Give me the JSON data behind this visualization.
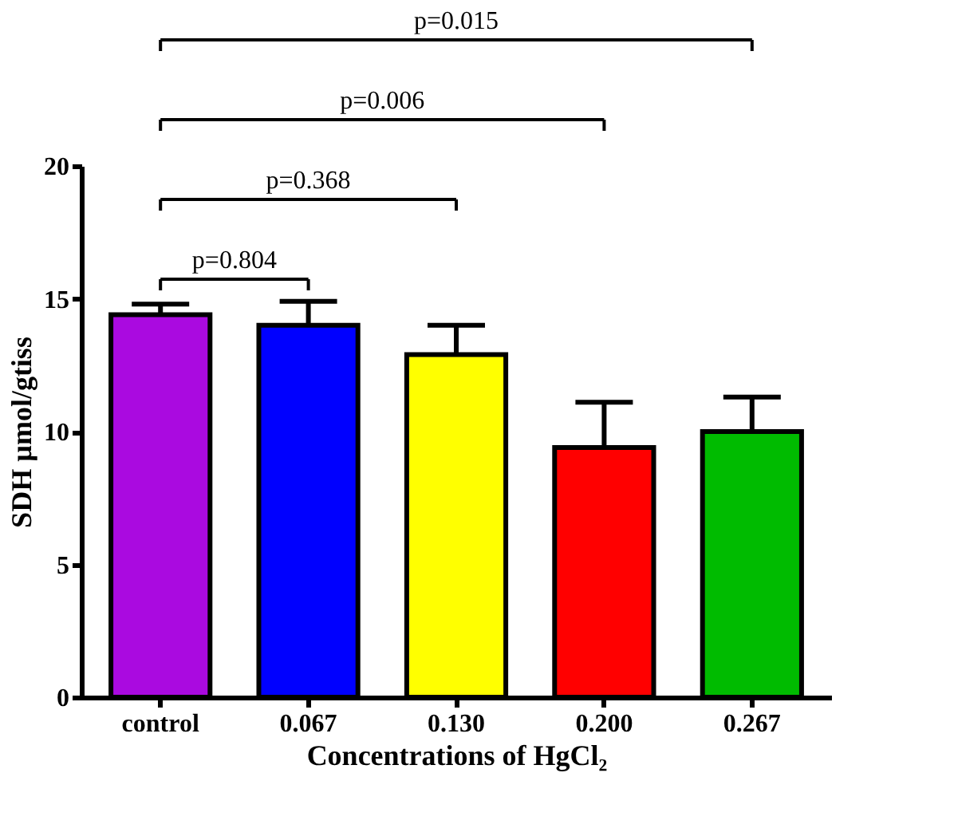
{
  "chart_data": {
    "type": "bar",
    "xlabel": "Concentrations of HgCl₂",
    "ylabel": "SDH µmol/gtiss",
    "categories": [
      "control",
      "0.067",
      "0.130",
      "0.200",
      "0.267"
    ],
    "values": [
      14.4,
      14.0,
      12.9,
      9.4,
      10.0
    ],
    "colors": [
      "#aa0ae0",
      "#0000ff",
      "#ffff00",
      "#ff0000",
      "#00bb00"
    ],
    "errors": [
      [
        14.4,
        14.8
      ],
      [
        14.0,
        14.9
      ],
      [
        12.9,
        14.0
      ],
      [
        9.4,
        11.1
      ],
      [
        10.0,
        11.3
      ]
    ],
    "ylim": [
      0,
      20
    ],
    "yticks": [
      0,
      5,
      10,
      15,
      20
    ],
    "grid": false,
    "annotations": [
      "p=0.804",
      "p=0.368",
      "p=0.006",
      "p=0.015"
    ]
  }
}
